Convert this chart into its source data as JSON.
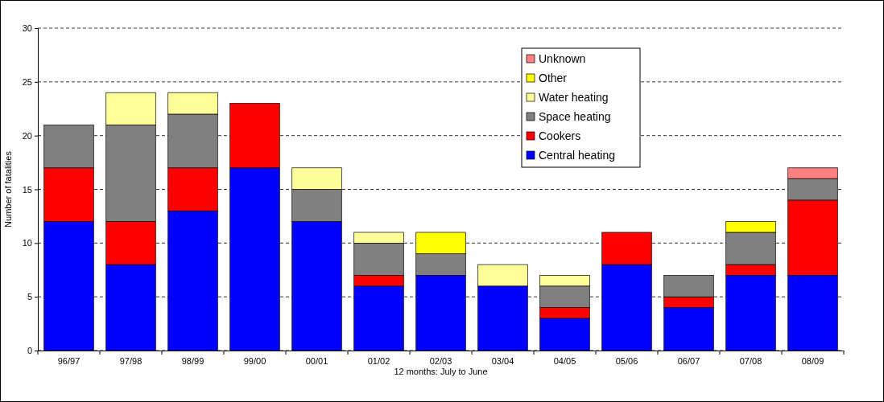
{
  "chart_data": {
    "type": "bar",
    "stacked": true,
    "xlabel": "12 months: July to June",
    "ylabel": "Number of fatalities",
    "categories": [
      "96/97",
      "97/98",
      "98/99",
      "99/00",
      "00/01",
      "01/02",
      "02/03",
      "03/04",
      "04/05",
      "05/06",
      "06/07",
      "07/08",
      "08/09"
    ],
    "series": [
      {
        "name": "Central heating",
        "color": "#0000ff",
        "values": [
          12,
          8,
          13,
          17,
          12,
          6,
          7,
          6,
          3,
          8,
          4,
          7,
          7
        ]
      },
      {
        "name": "Cookers",
        "color": "#ff0000",
        "values": [
          5,
          4,
          4,
          6,
          0,
          1,
          0,
          0,
          1,
          3,
          1,
          1,
          7
        ]
      },
      {
        "name": "Space heating",
        "color": "#808080",
        "values": [
          4,
          9,
          5,
          0,
          3,
          3,
          2,
          0,
          2,
          0,
          2,
          3,
          2
        ]
      },
      {
        "name": "Water heating",
        "color": "#ffff99",
        "values": [
          0,
          3,
          2,
          0,
          2,
          1,
          0,
          2,
          1,
          0,
          0,
          0,
          0
        ]
      },
      {
        "name": "Other",
        "color": "#ffff00",
        "values": [
          0,
          0,
          0,
          0,
          0,
          0,
          2,
          0,
          0,
          0,
          0,
          1,
          0
        ]
      },
      {
        "name": "Unknown",
        "color": "#ff8080",
        "values": [
          0,
          0,
          0,
          0,
          0,
          0,
          0,
          0,
          0,
          0,
          0,
          0,
          1
        ]
      }
    ],
    "ylim": [
      0,
      30
    ],
    "yticks": [
      0,
      5,
      10,
      15,
      20,
      25,
      30
    ],
    "grid": "y",
    "legend": "top right"
  }
}
